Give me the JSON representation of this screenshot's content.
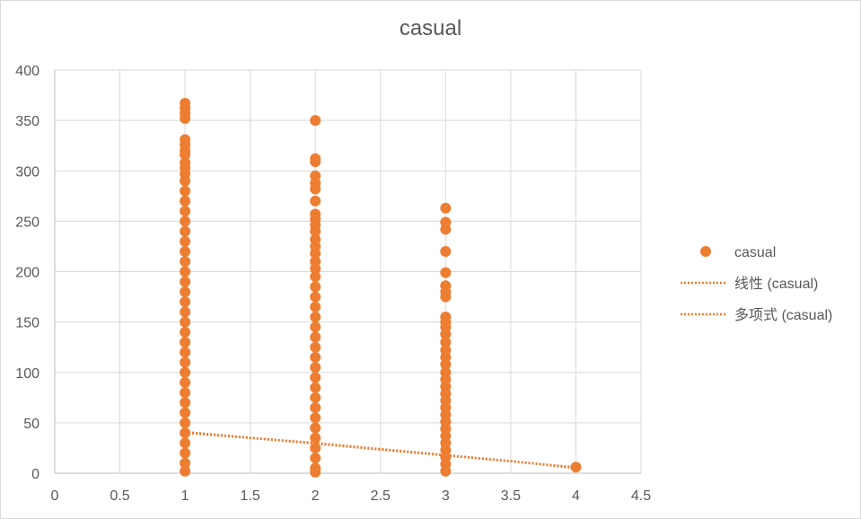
{
  "chart_data": {
    "type": "scatter",
    "title": "casual",
    "xlabel": "",
    "ylabel": "",
    "xlim": [
      0,
      4.5
    ],
    "ylim": [
      0,
      400
    ],
    "x_ticks": [
      0,
      0.5,
      1,
      1.5,
      2,
      2.5,
      3,
      3.5,
      4,
      4.5
    ],
    "y_ticks": [
      0,
      50,
      100,
      150,
      200,
      250,
      300,
      350,
      400
    ],
    "x_tick_labels": [
      "0",
      "0.5",
      "1",
      "1.5",
      "2",
      "2.5",
      "3",
      "3.5",
      "4",
      "4.5"
    ],
    "y_tick_labels": [
      "0",
      "50",
      "100",
      "150",
      "200",
      "250",
      "300",
      "350",
      "400"
    ],
    "grid": true,
    "legend_position": "right",
    "series": [
      {
        "name": "casual",
        "kind": "scatter",
        "color": "#ED7D31",
        "points": [
          {
            "x": 1,
            "y": 367
          },
          {
            "x": 1,
            "y": 362
          },
          {
            "x": 1,
            "y": 357
          },
          {
            "x": 1,
            "y": 352
          },
          {
            "x": 1,
            "y": 331
          },
          {
            "x": 1,
            "y": 326
          },
          {
            "x": 1,
            "y": 320
          },
          {
            "x": 1,
            "y": 316
          },
          {
            "x": 1,
            "y": 308
          },
          {
            "x": 1,
            "y": 303
          },
          {
            "x": 1,
            "y": 297
          },
          {
            "x": 1,
            "y": 290
          },
          {
            "x": 1,
            "y": 280
          },
          {
            "x": 1,
            "y": 270
          },
          {
            "x": 1,
            "y": 260
          },
          {
            "x": 1,
            "y": 250
          },
          {
            "x": 1,
            "y": 240
          },
          {
            "x": 1,
            "y": 230
          },
          {
            "x": 1,
            "y": 220
          },
          {
            "x": 1,
            "y": 210
          },
          {
            "x": 1,
            "y": 200
          },
          {
            "x": 1,
            "y": 190
          },
          {
            "x": 1,
            "y": 180
          },
          {
            "x": 1,
            "y": 170
          },
          {
            "x": 1,
            "y": 160
          },
          {
            "x": 1,
            "y": 150
          },
          {
            "x": 1,
            "y": 140
          },
          {
            "x": 1,
            "y": 130
          },
          {
            "x": 1,
            "y": 120
          },
          {
            "x": 1,
            "y": 110
          },
          {
            "x": 1,
            "y": 100
          },
          {
            "x": 1,
            "y": 90
          },
          {
            "x": 1,
            "y": 80
          },
          {
            "x": 1,
            "y": 70
          },
          {
            "x": 1,
            "y": 60
          },
          {
            "x": 1,
            "y": 50
          },
          {
            "x": 1,
            "y": 40
          },
          {
            "x": 1,
            "y": 30
          },
          {
            "x": 1,
            "y": 20
          },
          {
            "x": 1,
            "y": 10
          },
          {
            "x": 1,
            "y": 2
          },
          {
            "x": 2,
            "y": 350
          },
          {
            "x": 2,
            "y": 312
          },
          {
            "x": 2,
            "y": 309
          },
          {
            "x": 2,
            "y": 295
          },
          {
            "x": 2,
            "y": 288
          },
          {
            "x": 2,
            "y": 282
          },
          {
            "x": 2,
            "y": 270
          },
          {
            "x": 2,
            "y": 257
          },
          {
            "x": 2,
            "y": 252
          },
          {
            "x": 2,
            "y": 246
          },
          {
            "x": 2,
            "y": 240
          },
          {
            "x": 2,
            "y": 232
          },
          {
            "x": 2,
            "y": 225
          },
          {
            "x": 2,
            "y": 218
          },
          {
            "x": 2,
            "y": 210
          },
          {
            "x": 2,
            "y": 203
          },
          {
            "x": 2,
            "y": 195
          },
          {
            "x": 2,
            "y": 185
          },
          {
            "x": 2,
            "y": 175
          },
          {
            "x": 2,
            "y": 165
          },
          {
            "x": 2,
            "y": 155
          },
          {
            "x": 2,
            "y": 145
          },
          {
            "x": 2,
            "y": 135
          },
          {
            "x": 2,
            "y": 125
          },
          {
            "x": 2,
            "y": 115
          },
          {
            "x": 2,
            "y": 105
          },
          {
            "x": 2,
            "y": 95
          },
          {
            "x": 2,
            "y": 85
          },
          {
            "x": 2,
            "y": 75
          },
          {
            "x": 2,
            "y": 65
          },
          {
            "x": 2,
            "y": 55
          },
          {
            "x": 2,
            "y": 45
          },
          {
            "x": 2,
            "y": 35
          },
          {
            "x": 2,
            "y": 25
          },
          {
            "x": 2,
            "y": 15
          },
          {
            "x": 2,
            "y": 5
          },
          {
            "x": 2,
            "y": 1
          },
          {
            "x": 3,
            "y": 263
          },
          {
            "x": 3,
            "y": 249
          },
          {
            "x": 3,
            "y": 242
          },
          {
            "x": 3,
            "y": 220
          },
          {
            "x": 3,
            "y": 199
          },
          {
            "x": 3,
            "y": 186
          },
          {
            "x": 3,
            "y": 180
          },
          {
            "x": 3,
            "y": 175
          },
          {
            "x": 3,
            "y": 155
          },
          {
            "x": 3,
            "y": 150
          },
          {
            "x": 3,
            "y": 145
          },
          {
            "x": 3,
            "y": 138
          },
          {
            "x": 3,
            "y": 130
          },
          {
            "x": 3,
            "y": 122
          },
          {
            "x": 3,
            "y": 115
          },
          {
            "x": 3,
            "y": 108
          },
          {
            "x": 3,
            "y": 100
          },
          {
            "x": 3,
            "y": 93
          },
          {
            "x": 3,
            "y": 86
          },
          {
            "x": 3,
            "y": 79
          },
          {
            "x": 3,
            "y": 72
          },
          {
            "x": 3,
            "y": 65
          },
          {
            "x": 3,
            "y": 58
          },
          {
            "x": 3,
            "y": 51
          },
          {
            "x": 3,
            "y": 44
          },
          {
            "x": 3,
            "y": 37
          },
          {
            "x": 3,
            "y": 30
          },
          {
            "x": 3,
            "y": 23
          },
          {
            "x": 3,
            "y": 16
          },
          {
            "x": 3,
            "y": 9
          },
          {
            "x": 3,
            "y": 2
          },
          {
            "x": 4,
            "y": 6
          }
        ]
      },
      {
        "name": "线性 (casual)",
        "kind": "trendline",
        "color": "#ED7D31",
        "x": [
          1,
          4
        ],
        "y": [
          41,
          6
        ]
      },
      {
        "name": "多项式 (casual)",
        "kind": "trendline",
        "color": "#ED7D31",
        "x": [
          1,
          1.5,
          2,
          2.5,
          3,
          3.5,
          4
        ],
        "y": [
          40,
          35,
          30,
          24,
          18,
          12,
          5
        ]
      }
    ]
  }
}
